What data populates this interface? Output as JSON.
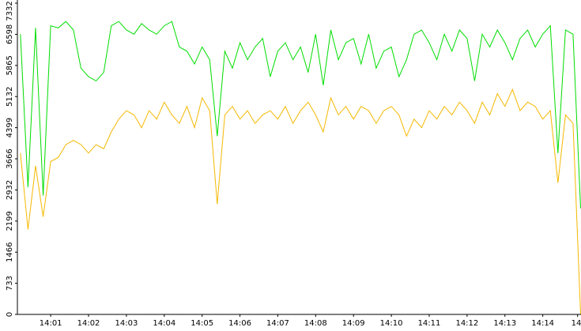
{
  "chart_data": {
    "type": "line",
    "xlim": [
      0.12,
      15.01
    ],
    "xticks": [
      {
        "value": 1,
        "label": "14:01"
      },
      {
        "value": 2,
        "label": "14:02"
      },
      {
        "value": 3,
        "label": "14:03"
      },
      {
        "value": 4,
        "label": "14:04"
      },
      {
        "value": 5,
        "label": "14:05"
      },
      {
        "value": 6,
        "label": "14:06"
      },
      {
        "value": 7,
        "label": "14:07"
      },
      {
        "value": 8,
        "label": "14:08"
      },
      {
        "value": 9,
        "label": "14:09"
      },
      {
        "value": 10,
        "label": "14:10"
      },
      {
        "value": 11,
        "label": "14:11"
      },
      {
        "value": 12,
        "label": "14:12"
      },
      {
        "value": 13,
        "label": "14:13"
      },
      {
        "value": 14,
        "label": "14:14"
      },
      {
        "value": 14.92,
        "label": "14:"
      }
    ],
    "ylim": [
      0,
      7332
    ],
    "yticks": [
      0,
      733,
      1466,
      2199,
      2932,
      3666,
      4399,
      5132,
      5865,
      6598,
      7332
    ],
    "x": [
      0.2,
      0.4,
      0.6,
      0.8,
      1.0,
      1.2,
      1.4,
      1.6,
      1.8,
      2.0,
      2.2,
      2.4,
      2.6,
      2.8,
      3.0,
      3.2,
      3.4,
      3.6,
      3.8,
      4.0,
      4.2,
      4.4,
      4.6,
      4.8,
      5.0,
      5.2,
      5.4,
      5.6,
      5.8,
      6.0,
      6.2,
      6.4,
      6.6,
      6.8,
      7.0,
      7.2,
      7.4,
      7.6,
      7.8,
      8.0,
      8.2,
      8.4,
      8.6,
      8.8,
      9.0,
      9.2,
      9.4,
      9.6,
      9.8,
      10.0,
      10.2,
      10.4,
      10.6,
      10.8,
      11.0,
      11.2,
      11.4,
      11.6,
      11.8,
      12.0,
      12.2,
      12.4,
      12.6,
      12.8,
      13.0,
      13.2,
      13.4,
      13.6,
      13.8,
      14.0,
      14.2,
      14.4,
      14.6,
      14.8,
      15.0
    ],
    "series": [
      {
        "color": "#00dd00",
        "values": [
          6600,
          3000,
          6750,
          2800,
          6800,
          6750,
          6900,
          6700,
          5800,
          5600,
          5500,
          5700,
          6800,
          6900,
          6700,
          6600,
          6850,
          6700,
          6600,
          6800,
          6900,
          6300,
          6200,
          5900,
          6300,
          6000,
          4200,
          6200,
          5800,
          6400,
          6000,
          6300,
          6500,
          5600,
          6200,
          6400,
          6000,
          6300,
          5700,
          6600,
          5400,
          6700,
          6000,
          6400,
          6500,
          5900,
          6600,
          5800,
          6200,
          6300,
          5600,
          6000,
          6600,
          6700,
          6400,
          6000,
          6600,
          6200,
          6700,
          6500,
          5500,
          6600,
          6300,
          6700,
          6400,
          6000,
          6500,
          6700,
          6300,
          6600,
          6800,
          3800,
          6700,
          6600,
          2500
        ]
      },
      {
        "color": "#f5b800",
        "values": [
          3800,
          2000,
          3500,
          2300,
          3600,
          3700,
          4000,
          4100,
          4000,
          3800,
          4000,
          3900,
          4300,
          4600,
          4800,
          4700,
          4400,
          4800,
          4600,
          5000,
          4700,
          4500,
          4900,
          4400,
          5100,
          4800,
          2600,
          4700,
          4900,
          4600,
          4800,
          4500,
          4700,
          4800,
          4600,
          4900,
          4500,
          4800,
          5000,
          4700,
          4300,
          5100,
          4700,
          4900,
          4600,
          4900,
          4800,
          4500,
          4800,
          4900,
          4700,
          4200,
          4600,
          4400,
          4800,
          4600,
          4900,
          4700,
          5000,
          4800,
          4500,
          5000,
          4700,
          5200,
          4900,
          5300,
          4800,
          5000,
          4900,
          4600,
          4800,
          3100,
          4700,
          4500,
          0
        ]
      }
    ]
  }
}
